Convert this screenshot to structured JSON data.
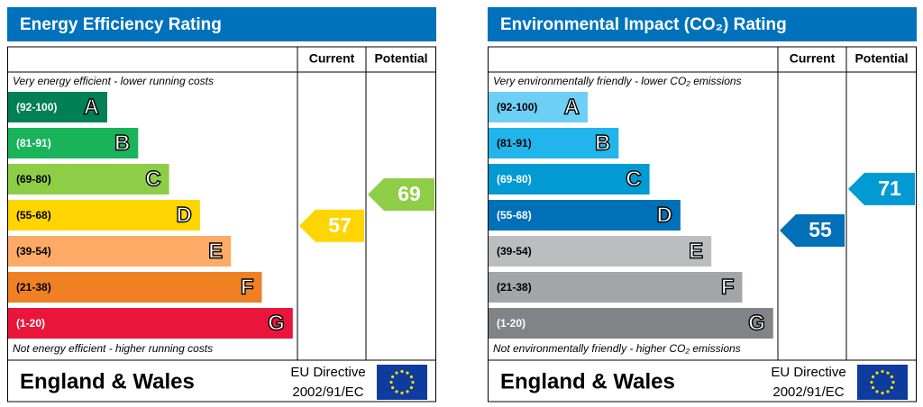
{
  "chart_data": [
    {
      "type": "epc",
      "title": "Energy Efficiency Rating",
      "columns": [
        "Current",
        "Potential"
      ],
      "top_note": "Very energy efficient - lower running costs",
      "bottom_note": "Not energy efficient - higher running costs",
      "bands": [
        {
          "range": "(92-100)",
          "letter": "A",
          "color": "#008054"
        },
        {
          "range": "(81-91)",
          "letter": "B",
          "color": "#19b459"
        },
        {
          "range": "(69-80)",
          "letter": "C",
          "color": "#8dce46"
        },
        {
          "range": "(55-68)",
          "letter": "D",
          "color": "#ffd500"
        },
        {
          "range": "(39-54)",
          "letter": "E",
          "color": "#fcaa65"
        },
        {
          "range": "(21-38)",
          "letter": "F",
          "color": "#ef8023"
        },
        {
          "range": "(1-20)",
          "letter": "G",
          "color": "#e9153b"
        }
      ],
      "current": 57,
      "potential": 69,
      "region": "England & Wales",
      "directive": [
        "EU Directive",
        "2002/91/EC"
      ]
    },
    {
      "type": "epc",
      "title": "Environmental Impact (CO₂) Rating",
      "columns": [
        "Current",
        "Potential"
      ],
      "top_note": "Very environmentally friendly - lower CO₂ emissions",
      "bottom_note": "Not environmentally friendly - higher CO₂ emissions",
      "bands": [
        {
          "range": "(92-100)",
          "letter": "A",
          "color": "#6ecff6"
        },
        {
          "range": "(81-91)",
          "letter": "B",
          "color": "#22b5eb"
        },
        {
          "range": "(69-80)",
          "letter": "C",
          "color": "#019ad3"
        },
        {
          "range": "(55-68)",
          "letter": "D",
          "color": "#0070b9"
        },
        {
          "range": "(39-54)",
          "letter": "E",
          "color": "#bbbdbf"
        },
        {
          "range": "(21-38)",
          "letter": "F",
          "color": "#a3a5a8"
        },
        {
          "range": "(1-20)",
          "letter": "G",
          "color": "#818386"
        }
      ],
      "current": 55,
      "potential": 71,
      "region": "England & Wales",
      "directive": [
        "EU Directive",
        "2002/91/EC"
      ]
    }
  ]
}
